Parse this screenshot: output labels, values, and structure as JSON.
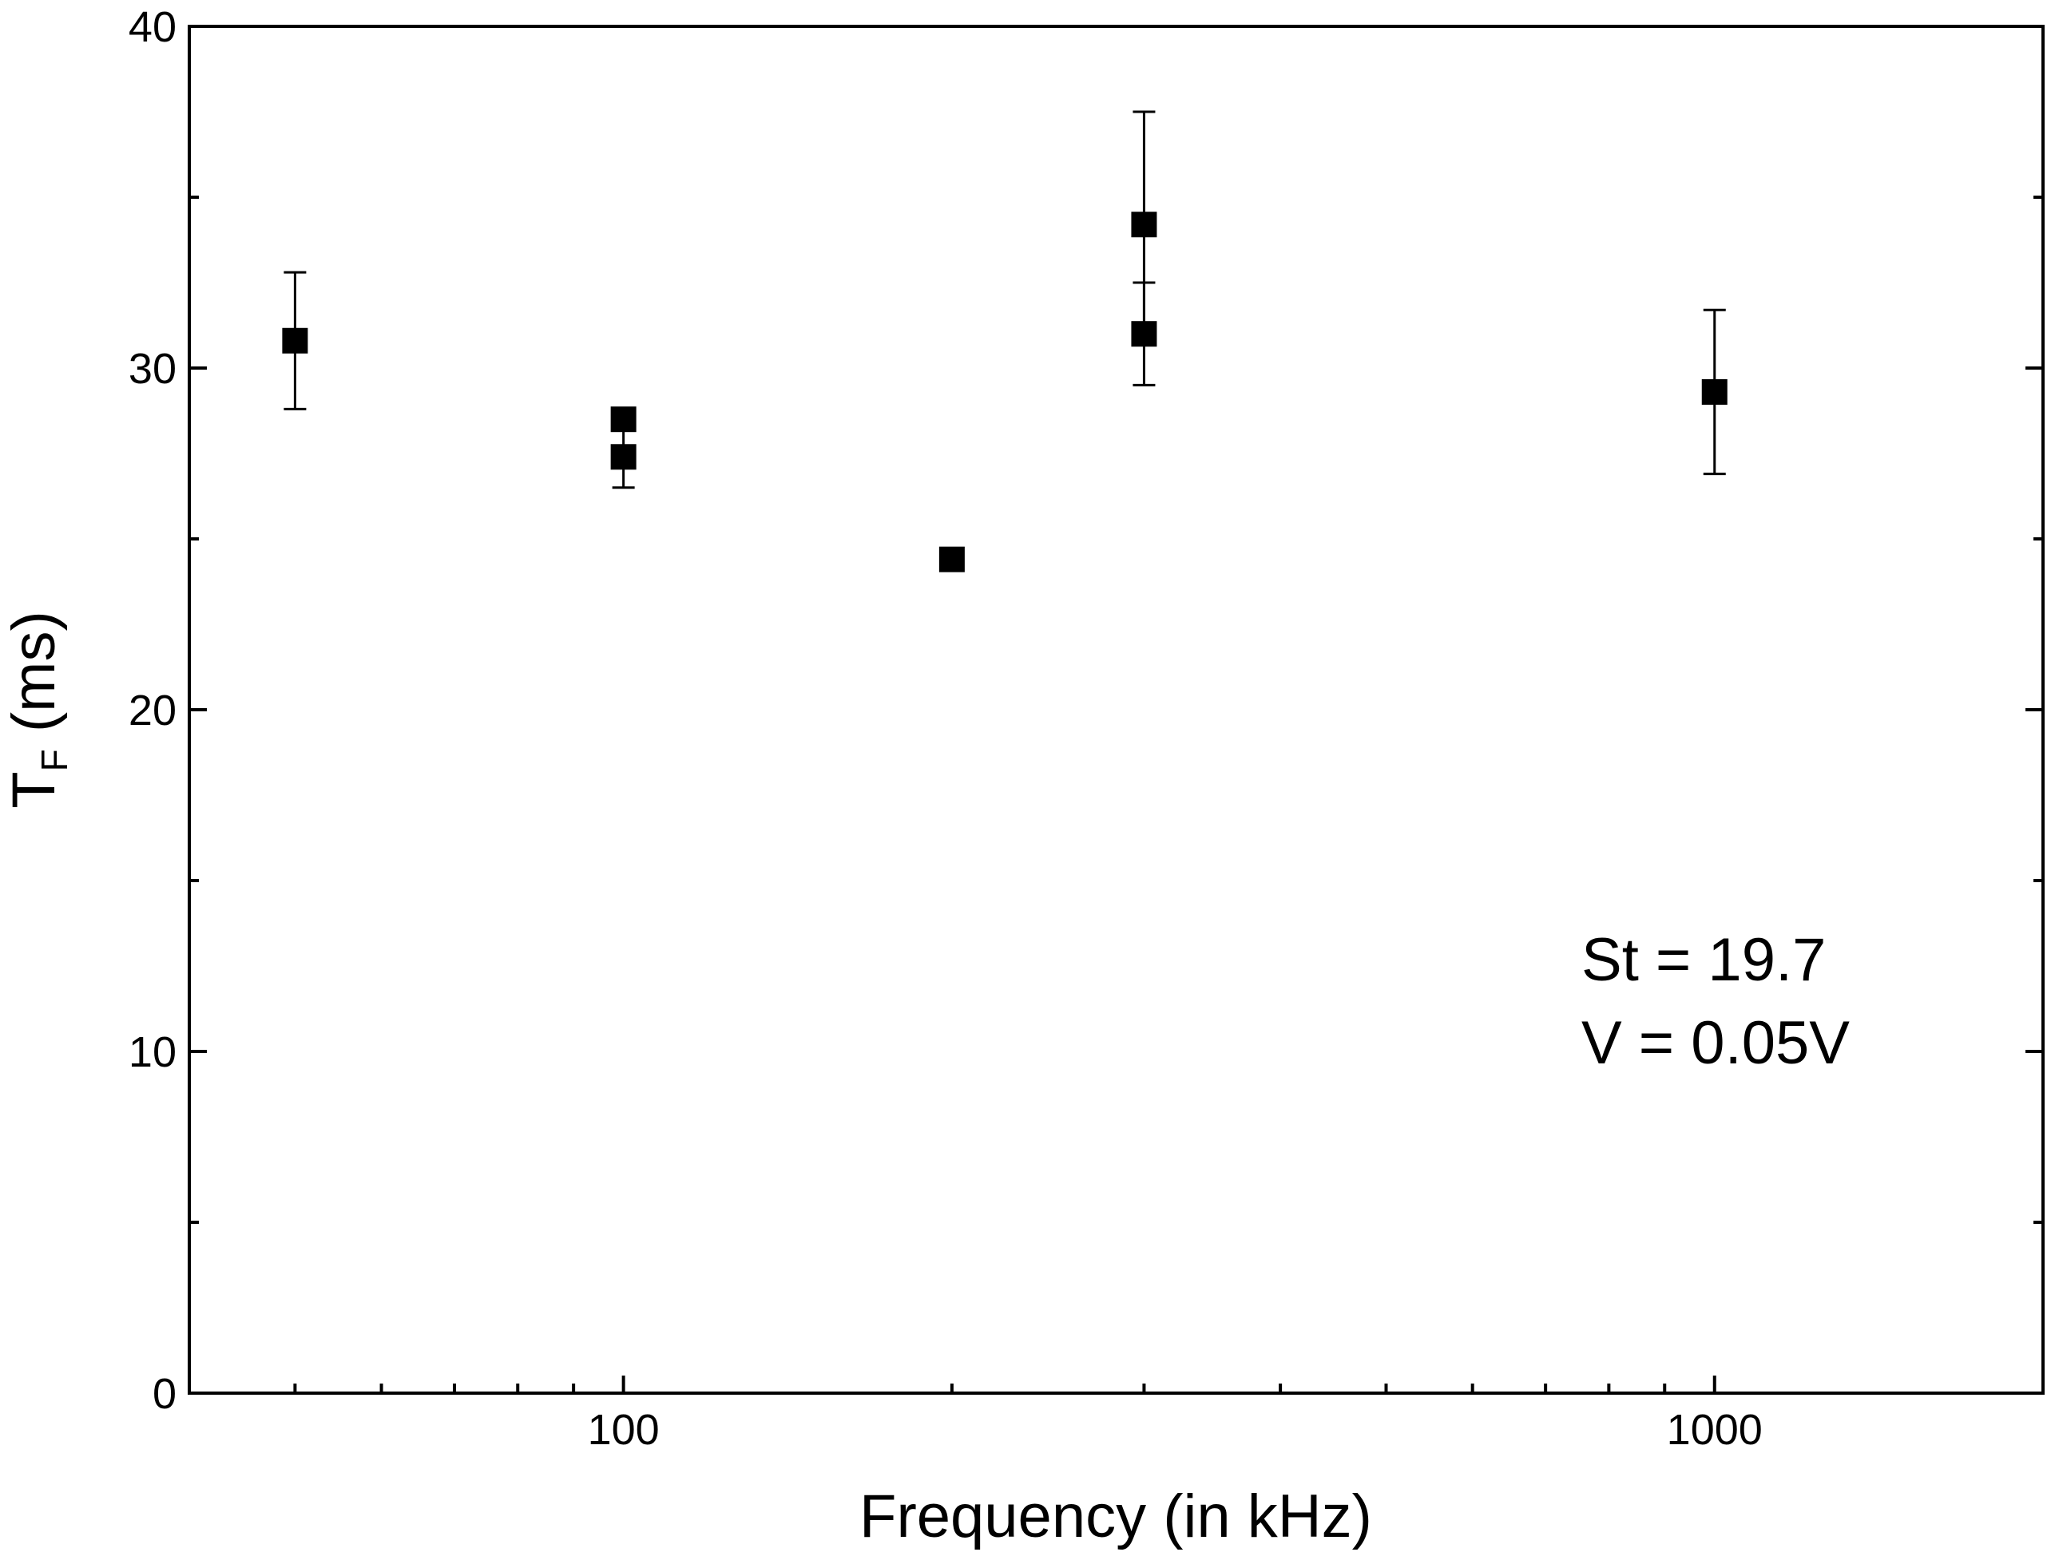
{
  "chart_data": {
    "type": "scatter",
    "xscale": "log",
    "xlim": [
      40,
      2000
    ],
    "ylim": [
      0,
      40
    ],
    "xlabel": "Frequency (in kHz)",
    "ylabel": {
      "main": "T",
      "subscript": "F",
      "unit": " (ms)"
    },
    "x_ticks": [
      100,
      1000
    ],
    "x_tick_labels": [
      "100",
      "1000"
    ],
    "y_ticks": [
      0,
      10,
      20,
      30,
      40
    ],
    "y_tick_labels": [
      "0",
      "10",
      "20",
      "30",
      "40"
    ],
    "y_minor_ticks": [
      5,
      15,
      25,
      35
    ],
    "x_minor_ticks": [
      50,
      60,
      70,
      80,
      90,
      200,
      300,
      400,
      500,
      600,
      700,
      800,
      900
    ],
    "grid": false,
    "marker": "filled-square",
    "marker_color": "#000000",
    "points": [
      {
        "x": 50,
        "y": 30.8,
        "err": 2.0
      },
      {
        "x": 100,
        "y": 28.5,
        "err": 0.1
      },
      {
        "x": 100,
        "y": 27.4,
        "err": 0.9
      },
      {
        "x": 200,
        "y": 24.4,
        "err": 0.1
      },
      {
        "x": 300,
        "y": 34.2,
        "err": 3.3
      },
      {
        "x": 300,
        "y": 31.0,
        "err": 1.5
      },
      {
        "x": 1000,
        "y": 29.3,
        "err": 2.4
      }
    ],
    "annotations": [
      "St = 19.7",
      "V = 0.05V"
    ]
  }
}
